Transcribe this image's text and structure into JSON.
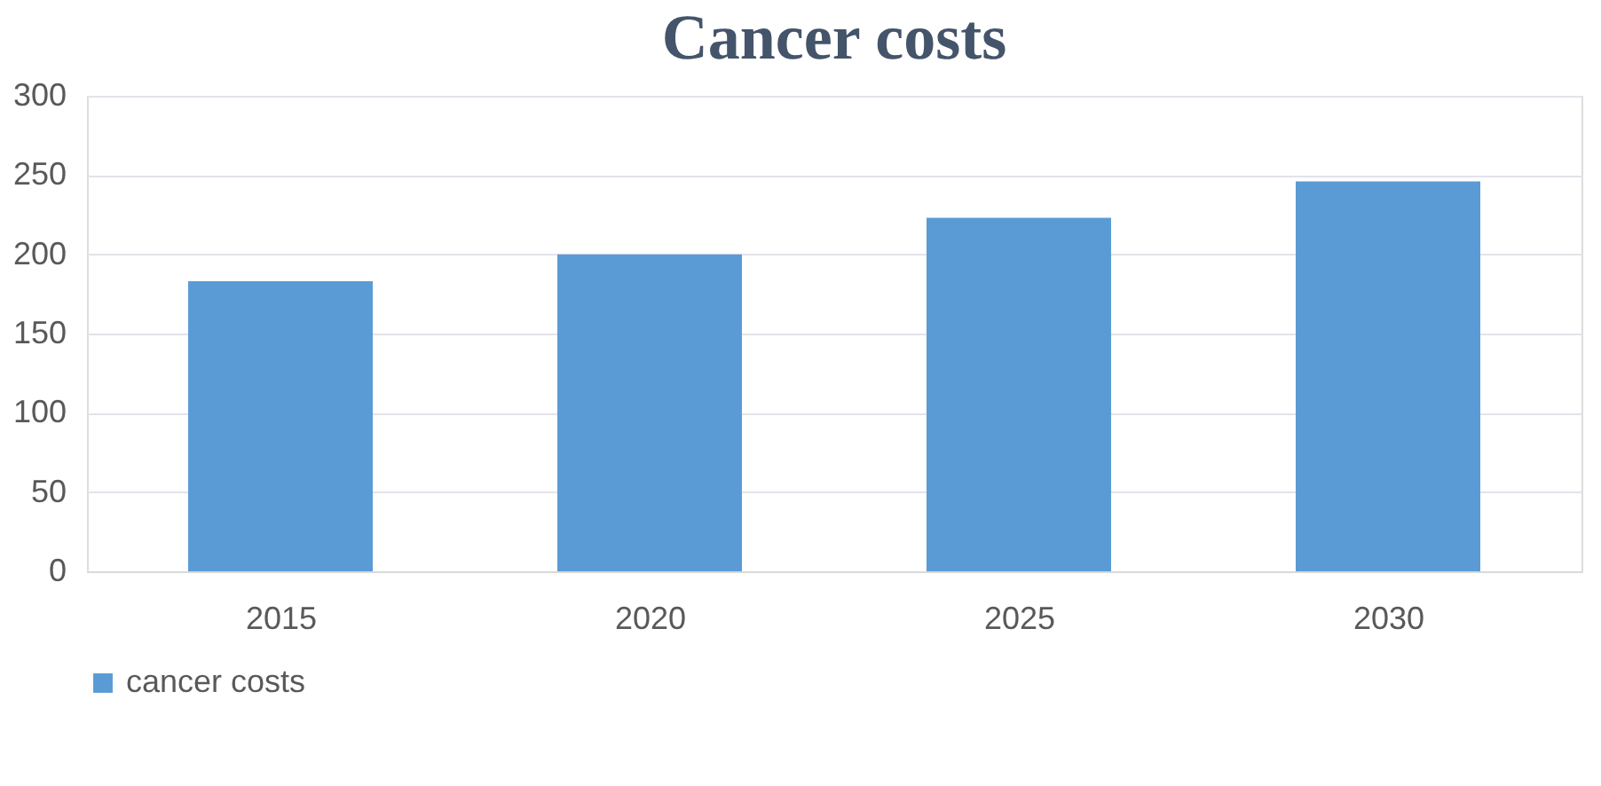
{
  "chart_data": {
    "type": "bar",
    "title": "Cancer costs",
    "categories": [
      "2015",
      "2020",
      "2025",
      "2030"
    ],
    "series": [
      {
        "name": "cancer costs",
        "color": "#5b9bd5",
        "values": [
          183,
          200,
          223,
          246
        ]
      }
    ],
    "ylim": [
      0,
      300
    ],
    "yticks": [
      0,
      50,
      100,
      150,
      200,
      250,
      300
    ],
    "grid": "y",
    "legend": "bottom"
  }
}
